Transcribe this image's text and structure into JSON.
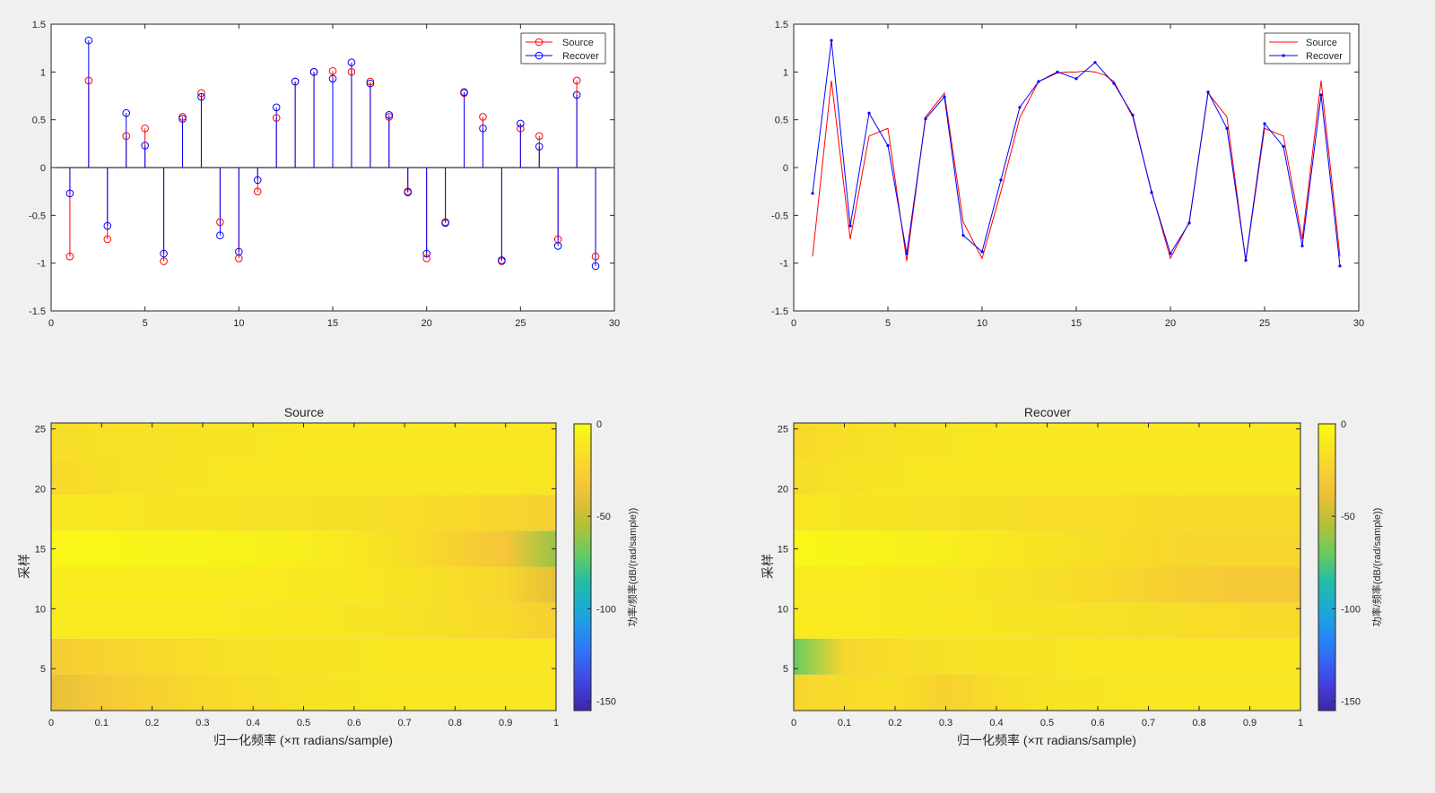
{
  "colors": {
    "source": "#ff0000",
    "recover": "#0000ff",
    "axes_background": "#ffffff",
    "figure_background": "#f0f0f0",
    "parula_stops": [
      "#3e26a8",
      "#4248e7",
      "#2c7bfb",
      "#1ca6de",
      "#1fbca9",
      "#6ecb5b",
      "#c3be32",
      "#f6c23c",
      "#f7de27",
      "#f9fb15"
    ]
  },
  "icons": {
    "legend_marker_circle": "circle-marker-icon",
    "legend_marker_point": "point-marker-icon"
  },
  "chart_data": [
    {
      "type": "stem",
      "title": "",
      "xlabel": "",
      "ylabel": "",
      "xlim": [
        0,
        30
      ],
      "ylim": [
        -1.5,
        1.5
      ],
      "xticks": [
        "0",
        "5",
        "10",
        "15",
        "20",
        "25",
        "30"
      ],
      "yticks": [
        "-1.5",
        "-1",
        "-0.5",
        "0",
        "0.5",
        "1",
        "1.5"
      ],
      "legend_position": "top-right",
      "x": [
        1,
        2,
        3,
        4,
        5,
        6,
        7,
        8,
        9,
        10,
        11,
        12,
        13,
        14,
        15,
        16,
        17,
        18,
        19,
        20,
        21,
        22,
        23,
        24,
        25,
        26,
        27,
        28,
        29
      ],
      "series": [
        {
          "name": "Source",
          "color": "#ff0000",
          "marker": "circle",
          "values": [
            -0.93,
            0.91,
            -0.75,
            0.33,
            0.41,
            -0.98,
            0.53,
            0.78,
            -0.57,
            -0.95,
            -0.25,
            0.52,
            0.9,
            1.0,
            1.01,
            1.0,
            0.9,
            0.53,
            -0.25,
            -0.95,
            -0.57,
            0.78,
            0.53,
            -0.98,
            0.41,
            0.33,
            -0.75,
            0.91,
            -0.93
          ]
        },
        {
          "name": "Recover",
          "color": "#0000ff",
          "marker": "circle",
          "values": [
            -0.27,
            1.33,
            -0.61,
            0.57,
            0.23,
            -0.9,
            0.51,
            0.74,
            -0.71,
            -0.88,
            -0.13,
            0.63,
            0.9,
            1.0,
            0.93,
            1.1,
            0.88,
            0.55,
            -0.26,
            -0.9,
            -0.58,
            0.79,
            0.41,
            -0.97,
            0.46,
            0.22,
            -0.82,
            0.76,
            -1.03
          ]
        }
      ]
    },
    {
      "type": "line",
      "title": "",
      "xlabel": "",
      "ylabel": "",
      "xlim": [
        0,
        30
      ],
      "ylim": [
        -1.5,
        1.5
      ],
      "xticks": [
        "0",
        "5",
        "10",
        "15",
        "20",
        "25",
        "30"
      ],
      "yticks": [
        "-1.5",
        "-1",
        "-0.5",
        "0",
        "0.5",
        "1",
        "1.5"
      ],
      "legend_position": "top-right",
      "source_curve": {
        "x": [
          1,
          2,
          3,
          4,
          5,
          6,
          7,
          8,
          9,
          10,
          11,
          12,
          13,
          14,
          14.5,
          15,
          15.5,
          16,
          16.5,
          17,
          18,
          19,
          20,
          21,
          22,
          23,
          24,
          25,
          26,
          27,
          28,
          29
        ],
        "y": [
          -0.93,
          0.91,
          -0.75,
          0.33,
          0.41,
          -0.98,
          0.53,
          0.78,
          -0.57,
          -0.95,
          -0.25,
          0.52,
          0.9,
          0.99,
          1.0,
          1.0,
          1.01,
          1.0,
          0.97,
          0.9,
          0.53,
          -0.25,
          -0.95,
          -0.57,
          0.78,
          0.53,
          -0.98,
          0.41,
          0.33,
          -0.75,
          0.91,
          -0.93
        ]
      },
      "series": [
        {
          "name": "Source",
          "color": "#ff0000",
          "marker": "none"
        },
        {
          "name": "Recover",
          "color": "#0000ff",
          "marker": "point",
          "x": [
            1,
            2,
            3,
            4,
            5,
            6,
            7,
            8,
            9,
            10,
            11,
            12,
            13,
            14,
            15,
            16,
            17,
            18,
            19,
            20,
            21,
            22,
            23,
            24,
            25,
            26,
            27,
            28,
            29
          ],
          "values": [
            -0.27,
            1.33,
            -0.61,
            0.57,
            0.23,
            -0.9,
            0.51,
            0.74,
            -0.71,
            -0.88,
            -0.13,
            0.63,
            0.9,
            1.0,
            0.93,
            1.1,
            0.88,
            0.55,
            -0.26,
            -0.9,
            -0.58,
            0.79,
            0.41,
            -0.97,
            0.46,
            0.22,
            -0.82,
            0.76,
            -1.03
          ]
        }
      ]
    },
    {
      "type": "heatmap",
      "title": "Source",
      "xlabel": "归一化频率 (×π radians/sample)",
      "ylabel": "采样",
      "xlim": [
        0,
        1
      ],
      "ylim": [
        1.5,
        25.5
      ],
      "xticks": [
        "0",
        "0.1",
        "0.2",
        "0.3",
        "0.4",
        "0.5",
        "0.6",
        "0.7",
        "0.8",
        "0.9",
        "1"
      ],
      "yticks": [
        "5",
        "10",
        "15",
        "20",
        "25"
      ],
      "colorbar": {
        "label": "功率/频率(dB/(rad/sample))",
        "range": [
          -155,
          0
        ],
        "ticks": [
          "0",
          "-50",
          "-100",
          "-150"
        ]
      },
      "freq": [
        0,
        0.1,
        0.2,
        0.3,
        0.4,
        0.5,
        0.6,
        0.7,
        0.8,
        0.9,
        1.0
      ],
      "segments": [
        {
          "y": [
            1.5,
            4.5
          ],
          "db": [
            -40,
            -30,
            -25,
            -20,
            -18,
            -15,
            -13,
            -12,
            -12,
            -12,
            -12
          ]
        },
        {
          "y": [
            4.5,
            7.5
          ],
          "db": [
            -28,
            -24,
            -20,
            -17,
            -15,
            -14,
            -13,
            -12,
            -12,
            -12,
            -12
          ]
        },
        {
          "y": [
            7.5,
            10.5
          ],
          "db": [
            -10,
            -10,
            -10,
            -10,
            -11,
            -12,
            -13,
            -15,
            -18,
            -20,
            -26
          ]
        },
        {
          "y": [
            10.5,
            13.5
          ],
          "db": [
            -9,
            -9,
            -9,
            -9,
            -10,
            -11,
            -12,
            -14,
            -18,
            -22,
            -40
          ]
        },
        {
          "y": [
            13.5,
            16.5
          ],
          "db": [
            -3,
            -3,
            -4,
            -5,
            -6,
            -8,
            -12,
            -17,
            -25,
            -32,
            -60
          ]
        },
        {
          "y": [
            16.5,
            19.5
          ],
          "db": [
            -11,
            -12,
            -13,
            -14,
            -15,
            -16,
            -17,
            -18,
            -20,
            -22,
            -26
          ]
        },
        {
          "y": [
            19.5,
            22.5
          ],
          "db": [
            -20,
            -17,
            -15,
            -13,
            -12,
            -12,
            -12,
            -12,
            -12,
            -12,
            -13
          ]
        },
        {
          "y": [
            22.5,
            25.5
          ],
          "db": [
            -18,
            -16,
            -15,
            -14,
            -13,
            -12,
            -12,
            -12,
            -12,
            -12,
            -12
          ]
        }
      ]
    },
    {
      "type": "heatmap",
      "title": "Recover",
      "xlabel": "归一化频率 (×π radians/sample)",
      "ylabel": "采样",
      "xlim": [
        0,
        1
      ],
      "ylim": [
        1.5,
        25.5
      ],
      "xticks": [
        "0",
        "0.1",
        "0.2",
        "0.3",
        "0.4",
        "0.5",
        "0.6",
        "0.7",
        "0.8",
        "0.9",
        "1"
      ],
      "yticks": [
        "5",
        "10",
        "15",
        "20",
        "25"
      ],
      "colorbar": {
        "label": "功率/频率(dB/(rad/sample))",
        "range": [
          -155,
          0
        ],
        "ticks": [
          "0",
          "-50",
          "-100",
          "-150"
        ]
      },
      "freq": [
        0,
        0.1,
        0.2,
        0.3,
        0.4,
        0.5,
        0.6,
        0.7,
        0.8,
        0.9,
        1.0
      ],
      "segments": [
        {
          "y": [
            1.5,
            4.5
          ],
          "db": [
            -22,
            -19,
            -17,
            -25,
            -18,
            -14,
            -13,
            -12,
            -12,
            -12,
            -12
          ]
        },
        {
          "y": [
            4.5,
            7.5
          ],
          "db": [
            -70,
            -22,
            -18,
            -16,
            -14,
            -13,
            -12,
            -12,
            -12,
            -12,
            -12
          ]
        },
        {
          "y": [
            7.5,
            10.5
          ],
          "db": [
            -10,
            -10,
            -11,
            -12,
            -13,
            -14,
            -15,
            -17,
            -18,
            -19,
            -20
          ]
        },
        {
          "y": [
            10.5,
            13.5
          ],
          "db": [
            -10,
            -10,
            -11,
            -12,
            -14,
            -17,
            -20,
            -24,
            -28,
            -30,
            -30
          ]
        },
        {
          "y": [
            13.5,
            16.5
          ],
          "db": [
            -3,
            -4,
            -6,
            -8,
            -11,
            -14,
            -17,
            -20,
            -22,
            -22,
            -22
          ]
        },
        {
          "y": [
            16.5,
            19.5
          ],
          "db": [
            -12,
            -13,
            -14,
            -16,
            -17,
            -18,
            -18,
            -19,
            -20,
            -20,
            -20
          ]
        },
        {
          "y": [
            19.5,
            22.5
          ],
          "db": [
            -18,
            -15,
            -13,
            -12,
            -12,
            -12,
            -12,
            -12,
            -12,
            -12,
            -12
          ]
        },
        {
          "y": [
            22.5,
            25.5
          ],
          "db": [
            -20,
            -17,
            -15,
            -13,
            -12,
            -12,
            -12,
            -12,
            -12,
            -12,
            -12
          ]
        }
      ]
    }
  ]
}
